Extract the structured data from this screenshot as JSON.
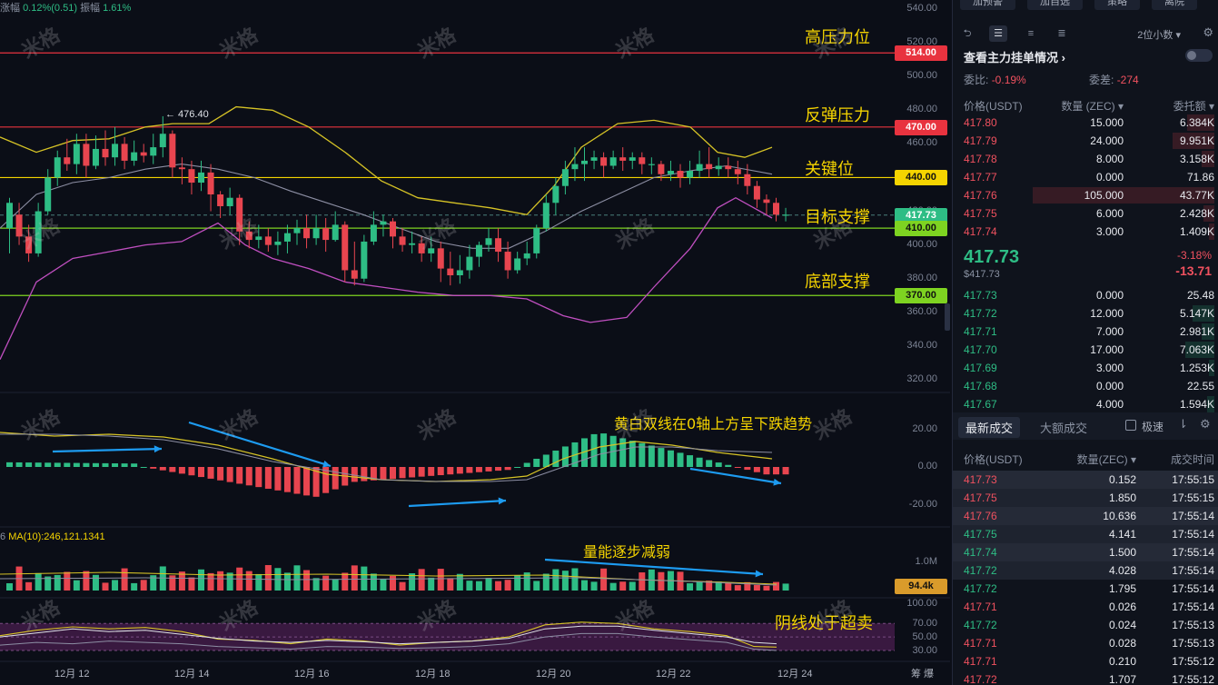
{
  "top_info": {
    "change_label": "涨幅",
    "change_value": "0.12%(0.51)",
    "amplitude_label": "振幅",
    "amplitude_value": "1.61%"
  },
  "annotations": {
    "resistance_high": "高压力位",
    "rebound_resistance": "反弹压力",
    "key_level": "关键位",
    "target_support": "目标支撑",
    "bottom_support": "底部支撑",
    "macd_note": "黄白双线在0轴上方呈下跌趋势",
    "volume_note": "量能逐步减弱",
    "rsi_note": "阴线处于超卖"
  },
  "high_label": "← 476.40",
  "price_levels": [
    {
      "label": "514.00",
      "color": "#e8333f",
      "text_color": "#ffffff"
    },
    {
      "label": "470.00",
      "color": "#e8333f",
      "text_color": "#ffffff"
    },
    {
      "label": "440.00",
      "color": "#f5d400",
      "text_color": "#111111"
    },
    {
      "label": "417.73",
      "color": "#2ebd85",
      "text_color": "#ffffff"
    },
    {
      "label": "410.00",
      "color": "#7ed321",
      "text_color": "#111111"
    },
    {
      "label": "370.00",
      "color": "#7ed321",
      "text_color": "#111111"
    }
  ],
  "y_ticks": [
    "540.00",
    "520.00",
    "500.00",
    "480.00",
    "460.00",
    "420.00",
    "400.00",
    "380.00",
    "360.00",
    "340.00",
    "320.00"
  ],
  "macd_ticks": [
    "20.00",
    "0.00",
    "-20.00"
  ],
  "volume_ticks": [
    "1.0M"
  ],
  "volume_badge": "94.4k",
  "rsi_ticks": [
    "100.00",
    "70.00",
    "50.00",
    "30.00"
  ],
  "x_ticks": [
    "12月 12",
    "12月 14",
    "12月 16",
    "12月 18",
    "12月 20",
    "12月 22",
    "12月 24"
  ],
  "x_right": "筹 爆",
  "ma_label": {
    "prefix": "6",
    "text": "MA(10):246,121.1341"
  },
  "watermark": "米格",
  "side": {
    "top_buttons": [
      "加预警",
      "加自选",
      "策略",
      "离院"
    ],
    "decimals": "2位小数 ▾",
    "depth_title": "查看主力挂单情况 ›",
    "ratio_label": "委比:",
    "ratio_value": "-0.19%",
    "diff_label": "委差:",
    "diff_value": "-274",
    "headers": [
      "价格(USDT)",
      "数量 (ZEC) ▾",
      "委托额 ▾"
    ],
    "asks": [
      [
        "417.80",
        "15.000",
        "6.384K",
        0.15
      ],
      [
        "417.79",
        "24.000",
        "9.951K",
        0.23
      ],
      [
        "417.78",
        "8.000",
        "3.158K",
        0.07
      ],
      [
        "417.77",
        "0.000",
        "71.86",
        0.0
      ],
      [
        "417.76",
        "105.000",
        "43.77K",
        1.0
      ],
      [
        "417.75",
        "6.000",
        "2.428K",
        0.06
      ],
      [
        "417.74",
        "3.000",
        "1.409K",
        0.03
      ]
    ],
    "last_price": "417.73",
    "last_price_usd": "$417.73",
    "change_pct": "-3.18%",
    "change_abs": "-13.71",
    "bids": [
      [
        "417.73",
        "0.000",
        "25.48",
        0.0
      ],
      [
        "417.72",
        "12.000",
        "5.147K",
        0.12
      ],
      [
        "417.71",
        "7.000",
        "2.981K",
        0.07
      ],
      [
        "417.70",
        "17.000",
        "7.063K",
        0.16
      ],
      [
        "417.69",
        "3.000",
        "1.253K",
        0.03
      ],
      [
        "417.68",
        "0.000",
        "22.55",
        0.0
      ],
      [
        "417.67",
        "4.000",
        "1.594K",
        0.04
      ]
    ],
    "trade_tabs": [
      "最新成交",
      "大额成交"
    ],
    "speed_label": "极速",
    "trade_headers": [
      "价格(USDT)",
      "数量(ZEC) ▾",
      "成交时间"
    ],
    "trades": [
      [
        "417.73",
        "0.152",
        "17:55:15",
        "red"
      ],
      [
        "417.75",
        "1.850",
        "17:55:15",
        "red"
      ],
      [
        "417.76",
        "10.636",
        "17:55:14",
        "red"
      ],
      [
        "417.75",
        "4.141",
        "17:55:14",
        "green"
      ],
      [
        "417.74",
        "1.500",
        "17:55:14",
        "green"
      ],
      [
        "417.72",
        "4.028",
        "17:55:14",
        "green"
      ],
      [
        "417.72",
        "1.795",
        "17:55:14",
        "green"
      ],
      [
        "417.71",
        "0.026",
        "17:55:14",
        "red"
      ],
      [
        "417.72",
        "0.024",
        "17:55:13",
        "green"
      ],
      [
        "417.71",
        "0.028",
        "17:55:13",
        "red"
      ],
      [
        "417.71",
        "0.210",
        "17:55:12",
        "red"
      ],
      [
        "417.72",
        "1.707",
        "17:55:12",
        "red"
      ]
    ]
  },
  "chart_data": {
    "type": "candlestick",
    "y_range": [
      310,
      545
    ],
    "candles": [
      [
        410,
        425,
        395,
        428
      ],
      [
        418,
        405,
        400,
        425
      ],
      [
        405,
        395,
        390,
        412
      ],
      [
        395,
        420,
        393,
        425
      ],
      [
        420,
        440,
        418,
        445
      ],
      [
        440,
        452,
        435,
        456
      ],
      [
        452,
        448,
        444,
        463
      ],
      [
        448,
        460,
        442,
        466
      ],
      [
        460,
        447,
        440,
        466
      ],
      [
        447,
        457,
        445,
        465
      ],
      [
        457,
        452,
        447,
        468
      ],
      [
        452,
        460,
        447,
        470
      ],
      [
        460,
        450,
        445,
        464
      ],
      [
        450,
        455,
        447,
        462
      ],
      [
        455,
        453,
        449,
        460
      ],
      [
        453,
        458,
        448,
        466
      ],
      [
        458,
        466,
        452,
        476.4
      ],
      [
        466,
        446,
        440,
        468
      ],
      [
        446,
        445,
        436,
        452
      ],
      [
        445,
        437,
        430,
        450
      ],
      [
        437,
        443,
        432,
        450
      ],
      [
        443,
        430,
        420,
        448
      ],
      [
        430,
        423,
        416,
        432
      ],
      [
        423,
        428,
        418,
        434
      ],
      [
        428,
        408,
        400,
        430
      ],
      [
        408,
        403,
        398,
        414
      ],
      [
        403,
        405,
        398,
        412
      ],
      [
        405,
        400,
        396,
        410
      ],
      [
        400,
        402,
        394,
        408
      ],
      [
        402,
        407,
        395,
        412
      ],
      [
        407,
        410,
        400,
        415
      ],
      [
        410,
        404,
        398,
        418
      ],
      [
        404,
        410,
        400,
        418
      ],
      [
        410,
        403,
        396,
        416
      ],
      [
        403,
        412,
        402,
        420
      ],
      [
        412,
        385,
        378,
        414
      ],
      [
        385,
        380,
        376,
        402
      ],
      [
        380,
        402,
        378,
        406
      ],
      [
        402,
        412,
        400,
        420
      ],
      [
        412,
        414,
        405,
        418
      ],
      [
        414,
        405,
        398,
        416
      ],
      [
        405,
        400,
        396,
        410
      ],
      [
        400,
        401,
        395,
        408
      ],
      [
        401,
        395,
        390,
        405
      ],
      [
        395,
        398,
        390,
        405
      ],
      [
        398,
        386,
        378,
        402
      ],
      [
        386,
        382,
        376,
        396
      ],
      [
        382,
        385,
        377,
        394
      ],
      [
        385,
        393,
        380,
        400
      ],
      [
        393,
        400,
        387,
        402
      ],
      [
        400,
        404,
        396,
        410
      ],
      [
        404,
        396,
        390,
        410
      ],
      [
        396,
        385,
        380,
        402
      ],
      [
        385,
        392,
        383,
        396
      ],
      [
        392,
        395,
        388,
        402
      ],
      [
        395,
        410,
        392,
        412
      ],
      [
        410,
        425,
        408,
        430
      ],
      [
        425,
        435,
        418,
        440
      ],
      [
        435,
        445,
        430,
        450
      ],
      [
        445,
        448,
        438,
        458
      ],
      [
        448,
        450,
        438,
        458
      ],
      [
        450,
        452,
        445,
        456
      ],
      [
        452,
        447,
        440,
        455
      ],
      [
        447,
        452,
        445,
        456
      ],
      [
        452,
        450,
        444,
        458
      ],
      [
        450,
        452,
        445,
        455
      ],
      [
        452,
        448,
        442,
        455
      ],
      [
        448,
        448,
        442,
        452
      ],
      [
        448,
        442,
        438,
        450
      ],
      [
        442,
        444,
        438,
        450
      ],
      [
        444,
        440,
        434,
        448
      ],
      [
        440,
        444,
        436,
        450
      ],
      [
        444,
        448,
        440,
        456
      ],
      [
        448,
        445,
        440,
        458
      ],
      [
        445,
        447,
        441,
        452
      ],
      [
        447,
        445,
        440,
        452
      ],
      [
        445,
        442,
        436,
        450
      ],
      [
        442,
        435,
        430,
        448
      ],
      [
        435,
        427,
        422,
        438
      ],
      [
        427,
        425,
        418,
        430
      ],
      [
        425,
        418,
        414,
        428
      ],
      [
        418,
        418,
        414,
        422
      ]
    ]
  }
}
